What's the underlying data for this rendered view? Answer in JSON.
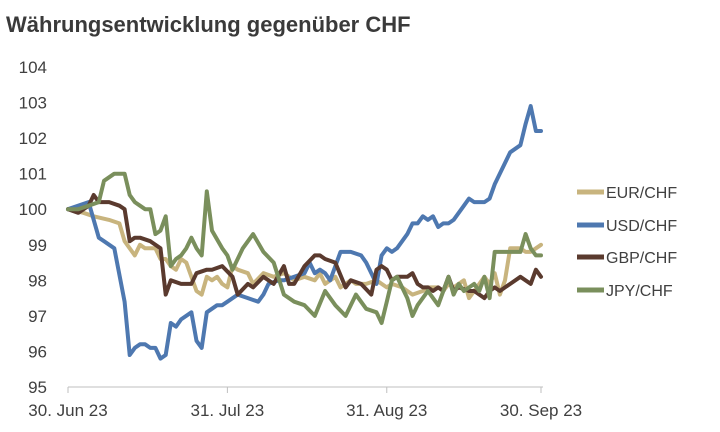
{
  "chart_data": {
    "type": "line",
    "title": "Währungsentwicklung gegenüber CHF",
    "xlabel": "",
    "ylabel": "",
    "ylim": [
      95,
      104
    ],
    "yticks": [
      "95",
      "96",
      "97",
      "98",
      "99",
      "100",
      "101",
      "102",
      "103",
      "104"
    ],
    "xlim": [
      0,
      92
    ],
    "xticks": [
      {
        "x": 0,
        "label": "30. Jun 23"
      },
      {
        "x": 31,
        "label": "31. Jul 23"
      },
      {
        "x": 62,
        "label": "31. Aug 23"
      },
      {
        "x": 92,
        "label": "30. Sep 23"
      }
    ],
    "grid": "horizontal",
    "legend_position": "right",
    "series": [
      {
        "name": "EUR/CHF",
        "color": "#c8b47e",
        "x": [
          0,
          3,
          5,
          8,
          10,
          11,
          13,
          14,
          15,
          17,
          18,
          19,
          20,
          21,
          22,
          23,
          25,
          26,
          27,
          28,
          29,
          30,
          31,
          32,
          33,
          35,
          36,
          38,
          40,
          42,
          44,
          46,
          48,
          49,
          50,
          52,
          53,
          55,
          56,
          58,
          60,
          62,
          63,
          65,
          66,
          67,
          69,
          70,
          72,
          73,
          74,
          75,
          77,
          78,
          80,
          81,
          82,
          83,
          84,
          85,
          86,
          88,
          89,
          90,
          91,
          92
        ],
        "values": [
          100.0,
          99.9,
          99.8,
          99.7,
          99.6,
          99.1,
          98.7,
          99.0,
          98.9,
          98.9,
          98.6,
          98.6,
          98.4,
          98.3,
          98.6,
          98.5,
          97.7,
          97.6,
          98.1,
          98.0,
          98.1,
          97.9,
          97.8,
          98.4,
          98.3,
          98.2,
          97.9,
          98.2,
          98.1,
          98.2,
          98.0,
          98.1,
          98.0,
          98.2,
          97.9,
          98.1,
          97.8,
          98.0,
          97.9,
          97.9,
          98.0,
          97.8,
          97.9,
          97.8,
          97.7,
          97.6,
          97.7,
          97.8,
          97.8,
          97.7,
          97.9,
          97.8,
          98.0,
          97.5,
          97.9,
          98.1,
          97.9,
          98.2,
          97.6,
          98.0,
          98.9,
          98.9,
          98.8,
          98.8,
          98.9,
          99.0
        ]
      },
      {
        "name": "USD/CHF",
        "color": "#4e78b0",
        "x": [
          0,
          2,
          4,
          6,
          7,
          9,
          11,
          12,
          13,
          14,
          15,
          16,
          17,
          18,
          19,
          20,
          21,
          22,
          24,
          25,
          26,
          27,
          29,
          30,
          31,
          33,
          35,
          37,
          38,
          39,
          41,
          42,
          44,
          46,
          47,
          48,
          49,
          50,
          51,
          53,
          54,
          55,
          57,
          58,
          60,
          61,
          62,
          63,
          64,
          66,
          67,
          68,
          69,
          70,
          71,
          72,
          73,
          74,
          75,
          77,
          78,
          79,
          81,
          82,
          83,
          85,
          86,
          88,
          89,
          90,
          91,
          92
        ],
        "values": [
          100.0,
          100.1,
          100.2,
          99.2,
          99.1,
          98.9,
          97.4,
          95.9,
          96.1,
          96.2,
          96.2,
          96.1,
          96.1,
          95.8,
          95.9,
          96.8,
          96.7,
          96.9,
          97.1,
          96.3,
          96.1,
          97.1,
          97.3,
          97.3,
          97.4,
          97.6,
          97.5,
          97.4,
          97.6,
          97.9,
          98.0,
          98.0,
          98.1,
          98.2,
          98.5,
          98.2,
          98.3,
          98.2,
          98.0,
          98.8,
          98.8,
          98.8,
          98.7,
          98.5,
          97.9,
          98.7,
          98.9,
          98.8,
          98.9,
          99.3,
          99.6,
          99.6,
          99.8,
          99.7,
          99.8,
          99.5,
          99.6,
          99.6,
          99.7,
          100.1,
          100.3,
          100.2,
          100.2,
          100.3,
          100.7,
          101.3,
          101.6,
          101.8,
          102.4,
          102.9,
          102.2,
          102.2
        ]
      },
      {
        "name": "GBP/CHF",
        "color": "#5a3a2e",
        "x": [
          0,
          2,
          4,
          5,
          6,
          8,
          10,
          11,
          12,
          13,
          14,
          16,
          17,
          18,
          19,
          20,
          22,
          24,
          25,
          27,
          28,
          30,
          32,
          33,
          35,
          36,
          38,
          40,
          42,
          43,
          44,
          46,
          48,
          49,
          50,
          52,
          54,
          55,
          57,
          59,
          60,
          61,
          62,
          63,
          64,
          66,
          67,
          68,
          69,
          70,
          71,
          72,
          73,
          74,
          75,
          76,
          78,
          79,
          81,
          82,
          83,
          84,
          85,
          86,
          88,
          90,
          91,
          92
        ],
        "values": [
          100.0,
          99.9,
          100.1,
          100.4,
          100.2,
          100.2,
          100.1,
          100.0,
          99.1,
          99.2,
          99.2,
          99.1,
          99.0,
          98.9,
          97.6,
          98.0,
          97.9,
          97.9,
          98.2,
          98.3,
          98.3,
          98.4,
          98.1,
          97.6,
          97.9,
          97.8,
          98.1,
          97.9,
          98.4,
          97.9,
          97.9,
          98.4,
          98.7,
          98.7,
          98.6,
          98.5,
          97.8,
          98.0,
          97.9,
          97.6,
          98.3,
          98.4,
          98.3,
          98.0,
          98.1,
          98.1,
          98.2,
          97.9,
          97.8,
          97.8,
          97.7,
          97.8,
          97.7,
          98.1,
          97.7,
          97.8,
          97.7,
          97.7,
          97.5,
          97.7,
          97.8,
          97.7,
          97.8,
          97.9,
          98.1,
          97.9,
          98.3,
          98.1
        ]
      },
      {
        "name": "JPY/CHF",
        "color": "#7a8f5c",
        "x": [
          0,
          2,
          4,
          6,
          7,
          9,
          10,
          11,
          12,
          13,
          14,
          15,
          16,
          17,
          18,
          19,
          20,
          21,
          22,
          23,
          24,
          25,
          26,
          27,
          28,
          30,
          31,
          32,
          34,
          36,
          38,
          40,
          42,
          44,
          46,
          48,
          50,
          52,
          54,
          56,
          58,
          60,
          61,
          62,
          63,
          64,
          66,
          67,
          68,
          70,
          72,
          74,
          75,
          76,
          77,
          79,
          80,
          81,
          82,
          83,
          85,
          86,
          88,
          89,
          90,
          91,
          92
        ],
        "values": [
          100.0,
          100.0,
          100.1,
          100.2,
          100.8,
          101.0,
          101.0,
          101.0,
          100.4,
          100.2,
          100.1,
          100.0,
          100.0,
          99.3,
          99.4,
          99.8,
          98.4,
          98.6,
          98.7,
          98.9,
          99.2,
          98.9,
          98.7,
          100.5,
          99.4,
          98.9,
          98.7,
          98.3,
          98.9,
          99.3,
          98.8,
          98.5,
          97.6,
          97.4,
          97.3,
          97.0,
          97.7,
          97.3,
          97.0,
          97.6,
          97.2,
          97.1,
          96.8,
          97.4,
          98.0,
          98.1,
          97.5,
          97.0,
          97.3,
          97.7,
          97.3,
          98.1,
          97.6,
          97.9,
          97.7,
          97.9,
          97.7,
          98.1,
          97.5,
          98.8,
          98.8,
          98.8,
          98.8,
          99.3,
          98.9,
          98.7,
          98.7
        ]
      }
    ]
  }
}
